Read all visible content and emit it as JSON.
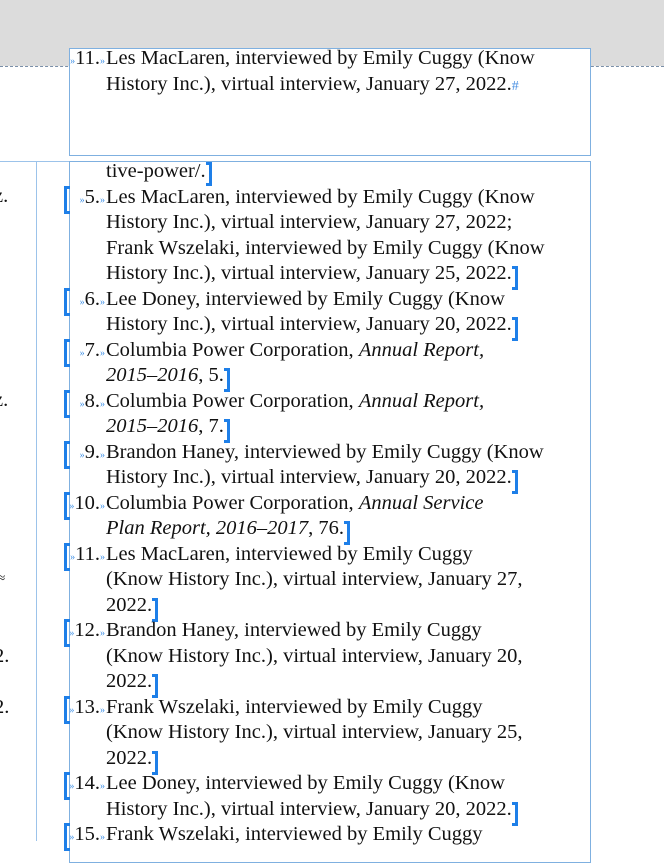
{
  "top_frame": {
    "number": "11.",
    "lines": [
      [
        {
          "t": "Les MacLaren, interviewed by Emily Cuggy (Know"
        }
      ],
      [
        {
          "t": "History Inc.), virtual interview, January 27, 2022."
        }
      ]
    ],
    "end_marker": "#"
  },
  "continued_line": "tive-power/.",
  "footnotes": [
    {
      "number": "5.",
      "lines": [
        [
          {
            "t": "Les MacLaren, interviewed by Emily Cuggy (Know"
          }
        ],
        [
          {
            "t": "History Inc.), virtual interview, January 27, 2022;"
          }
        ],
        [
          {
            "t": "Frank Wszelaki, interviewed by Emily Cuggy (Know"
          }
        ],
        [
          {
            "t": "History Inc.), virtual interview, January 25, 2022."
          }
        ]
      ]
    },
    {
      "number": "6.",
      "lines": [
        [
          {
            "t": "Lee Doney, interviewed by Emily Cuggy (Know"
          }
        ],
        [
          {
            "t": "History Inc.), virtual interview, January 20, 2022."
          }
        ]
      ]
    },
    {
      "number": "7.",
      "lines": [
        [
          {
            "t": "Columbia Power Corporation, "
          },
          {
            "t": "Annual Report,",
            "i": true
          }
        ],
        [
          {
            "t": "2015–2016",
            "i": true
          },
          {
            "t": ", 5."
          }
        ]
      ]
    },
    {
      "number": "8.",
      "lines": [
        [
          {
            "t": "Columbia Power Corporation, "
          },
          {
            "t": "Annual Report,",
            "i": true
          }
        ],
        [
          {
            "t": "2015–2016",
            "i": true
          },
          {
            "t": ", 7."
          }
        ]
      ]
    },
    {
      "number": "9.",
      "lines": [
        [
          {
            "t": "Brandon Haney, interviewed by Emily Cuggy (Know"
          }
        ],
        [
          {
            "t": "History Inc.), virtual interview, January 20, 2022."
          }
        ]
      ]
    },
    {
      "number": "10.",
      "lines": [
        [
          {
            "t": "Columbia Power Corporation, "
          },
          {
            "t": "Annual Service",
            "i": true
          }
        ],
        [
          {
            "t": "Plan Report, 2016–2017",
            "i": true
          },
          {
            "t": ", 76."
          }
        ]
      ]
    },
    {
      "number": "11.",
      "lines": [
        [
          {
            "t": "Les MacLaren, interviewed by Emily Cuggy"
          }
        ],
        [
          {
            "t": "(Know History Inc.), virtual interview, January 27,"
          }
        ],
        [
          {
            "t": "2022."
          }
        ]
      ]
    },
    {
      "number": "12.",
      "lines": [
        [
          {
            "t": "Brandon Haney, interviewed by Emily Cuggy"
          }
        ],
        [
          {
            "t": "(Know History Inc.), virtual interview, January 20,"
          }
        ],
        [
          {
            "t": "2022."
          }
        ]
      ]
    },
    {
      "number": "13.",
      "lines": [
        [
          {
            "t": "Frank Wszelaki, interviewed by Emily Cuggy"
          }
        ],
        [
          {
            "t": "(Know History Inc.), virtual interview, January 25,"
          }
        ],
        [
          {
            "t": "2022."
          }
        ]
      ]
    },
    {
      "number": "14.",
      "lines": [
        [
          {
            "t": "Lee Doney, interviewed by Emily Cuggy (Know"
          }
        ],
        [
          {
            "t": "History Inc.), virtual interview, January 20, 2022."
          }
        ]
      ]
    },
    {
      "number": "15.",
      "lines": [
        [
          {
            "t": "Frank Wszelaki, interviewed by Emily Cuggy"
          }
        ]
      ]
    }
  ],
  "left_column_fragments": [
    "z.",
    "z.",
    "≈",
    "2.",
    "2."
  ],
  "colors": {
    "frame": "#7fb0e0",
    "marker": "#1e7fe8",
    "pasteboard": "#dcdcdc"
  }
}
